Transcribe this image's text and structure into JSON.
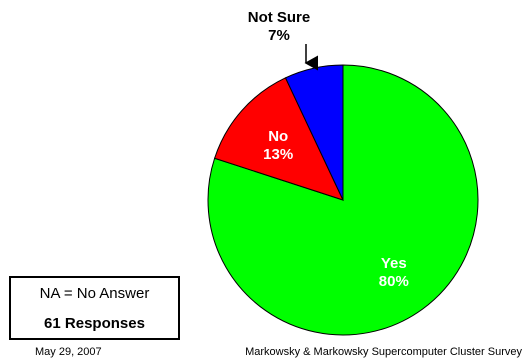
{
  "chart_data": {
    "type": "pie",
    "slices": [
      {
        "label": "Yes",
        "value_label": "80%",
        "value": 80,
        "color": "#00ff00"
      },
      {
        "label": "No",
        "value_label": "13%",
        "value": 13,
        "color": "#ff0000"
      },
      {
        "label": "Not Sure",
        "value_label": "7%",
        "value": 7,
        "color": "#0000ff"
      }
    ],
    "start": "12 o'clock",
    "direction": "clockwise",
    "callout": "Not Sure"
  },
  "info_box": {
    "line1": "NA = No Answer",
    "line2": "61 Responses"
  },
  "footer": {
    "date": "May 29, 2007",
    "source": "Markowsky & Markowsky Supercomputer Cluster Survey"
  }
}
